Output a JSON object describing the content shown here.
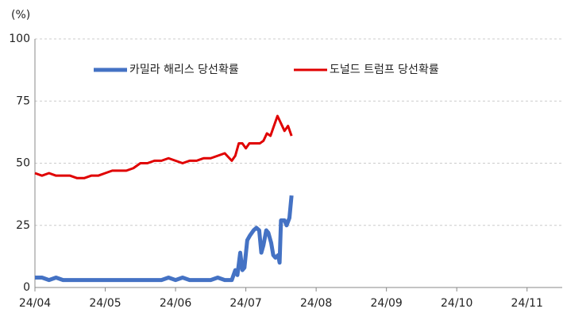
{
  "chart_data": {
    "type": "line",
    "y_label": "(%)",
    "xlim": [
      0,
      7.5
    ],
    "xticks": [
      {
        "value": 0,
        "label": "24/04"
      },
      {
        "value": 1,
        "label": "24/05"
      },
      {
        "value": 2,
        "label": "24/06"
      },
      {
        "value": 3,
        "label": "24/07"
      },
      {
        "value": 4,
        "label": "24/08"
      },
      {
        "value": 5,
        "label": "24/09"
      },
      {
        "value": 6,
        "label": "24/10"
      },
      {
        "value": 7,
        "label": "24/11"
      }
    ],
    "ylim": [
      0,
      100
    ],
    "yticks": [
      0,
      25,
      50,
      75,
      100
    ],
    "grid": true,
    "series": [
      {
        "name": "카밀라 해리스 당선확률",
        "color": "#4472c4",
        "x": [
          0,
          0.1,
          0.2,
          0.3,
          0.4,
          0.5,
          0.6,
          0.7,
          0.8,
          0.9,
          1.0,
          1.1,
          1.2,
          1.3,
          1.4,
          1.5,
          1.6,
          1.7,
          1.8,
          1.9,
          2.0,
          2.1,
          2.2,
          2.3,
          2.4,
          2.5,
          2.6,
          2.7,
          2.8,
          2.85,
          2.88,
          2.92,
          2.95,
          2.98,
          3.02,
          3.06,
          3.11,
          3.15,
          3.19,
          3.22,
          3.25,
          3.29,
          3.32,
          3.36,
          3.39,
          3.42,
          3.46,
          3.48,
          3.5,
          3.55,
          3.58,
          3.62,
          3.65
        ],
        "values": [
          4,
          4,
          3,
          4,
          3,
          3,
          3,
          3,
          3,
          3,
          3,
          3,
          3,
          3,
          3,
          3,
          3,
          3,
          3,
          4,
          3,
          4,
          3,
          3,
          3,
          3,
          4,
          3,
          3,
          7,
          5,
          14,
          7,
          8,
          19,
          21,
          23,
          24,
          23,
          14,
          17,
          23,
          22,
          18,
          13,
          12,
          13,
          10,
          27,
          27,
          25,
          28,
          37
        ]
      },
      {
        "name": "도널드 트럼프 당선확률",
        "color": "#e00000",
        "x": [
          0,
          0.1,
          0.2,
          0.3,
          0.4,
          0.5,
          0.6,
          0.7,
          0.8,
          0.9,
          1.0,
          1.1,
          1.2,
          1.3,
          1.4,
          1.5,
          1.6,
          1.7,
          1.8,
          1.9,
          2.0,
          2.1,
          2.2,
          2.3,
          2.4,
          2.5,
          2.6,
          2.7,
          2.8,
          2.85,
          2.9,
          2.95,
          3.0,
          3.05,
          3.1,
          3.2,
          3.25,
          3.3,
          3.35,
          3.4,
          3.45,
          3.5,
          3.55,
          3.6,
          3.65
        ],
        "values": [
          46,
          45,
          46,
          45,
          45,
          45,
          44,
          44,
          45,
          45,
          46,
          47,
          47,
          47,
          48,
          50,
          50,
          51,
          51,
          52,
          51,
          50,
          51,
          51,
          52,
          52,
          53,
          54,
          51,
          53,
          58,
          58,
          56,
          58,
          58,
          58,
          59,
          62,
          61,
          65,
          69,
          66,
          63,
          65,
          61
        ]
      }
    ]
  }
}
